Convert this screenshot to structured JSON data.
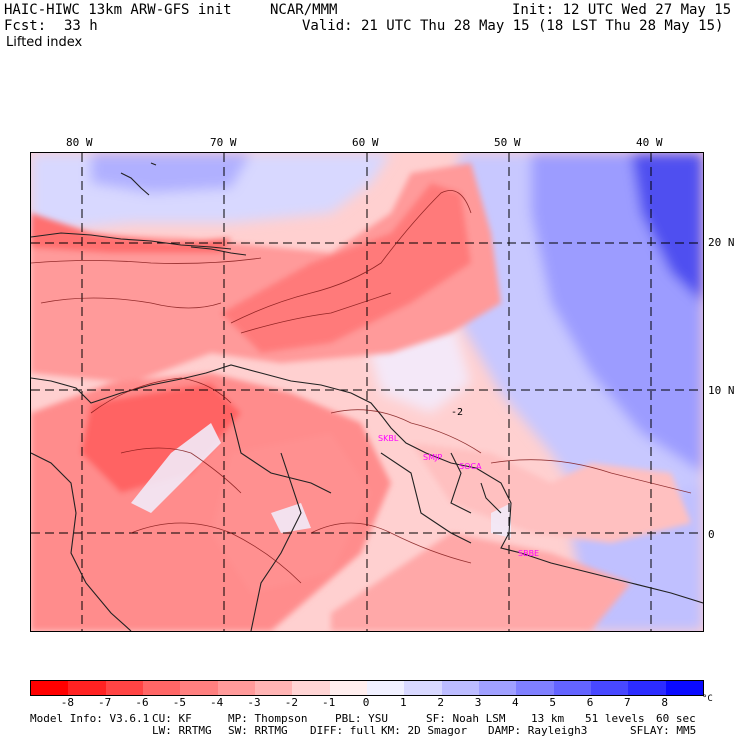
{
  "header": {
    "model": "HAIC-HIWC 13km ARW-GFS init",
    "org": "NCAR/MMM",
    "init": "Init: 12 UTC Wed 27 May 15",
    "fcst_label": "Fcst:",
    "fcst_value": "33 h",
    "valid": "Valid: 21 UTC Thu 28 May 15 (18 LST Thu 28 May 15)",
    "field": "Lifted index"
  },
  "map": {
    "longitudes": [
      "80 W",
      "70 W",
      "60 W",
      "50 W",
      "40 W"
    ],
    "latitudes": [
      "20 N",
      "10 N",
      "0"
    ],
    "stations": [
      "SKBL",
      "SMJP",
      "SOCA",
      "SBBE"
    ],
    "contour_label": "-2"
  },
  "colorbar": {
    "colors": [
      "#ff0000",
      "#ff2222",
      "#ff4444",
      "#ff6666",
      "#ff8080",
      "#ff9a9a",
      "#ffb4b4",
      "#ffd4d4",
      "#ffeeee",
      "#f0f0ff",
      "#d8d8ff",
      "#bcbcff",
      "#a0a0ff",
      "#8080ff",
      "#6464ff",
      "#4848ff",
      "#2c2cff",
      "#0a0aff"
    ],
    "ticks": [
      "-8",
      "-7",
      "-6",
      "-5",
      "-4",
      "-3",
      "-2",
      "-1",
      "0",
      "1",
      "2",
      "3",
      "4",
      "5",
      "6",
      "7",
      "8"
    ],
    "unit": "°C"
  },
  "footer": {
    "line1": [
      "Model Info: V3.6.1",
      "CU: KF",
      "MP: Thompson",
      "PBL: YSU",
      "SF: Noah LSM",
      "13 km",
      "51 levels",
      "60 sec"
    ],
    "line2": [
      "LW: RRTMG",
      "SW: RRTMG",
      "DIFF: full",
      "KM: 2D Smagor",
      "DAMP: Rayleigh3",
      "SFLAY: MM5"
    ]
  }
}
